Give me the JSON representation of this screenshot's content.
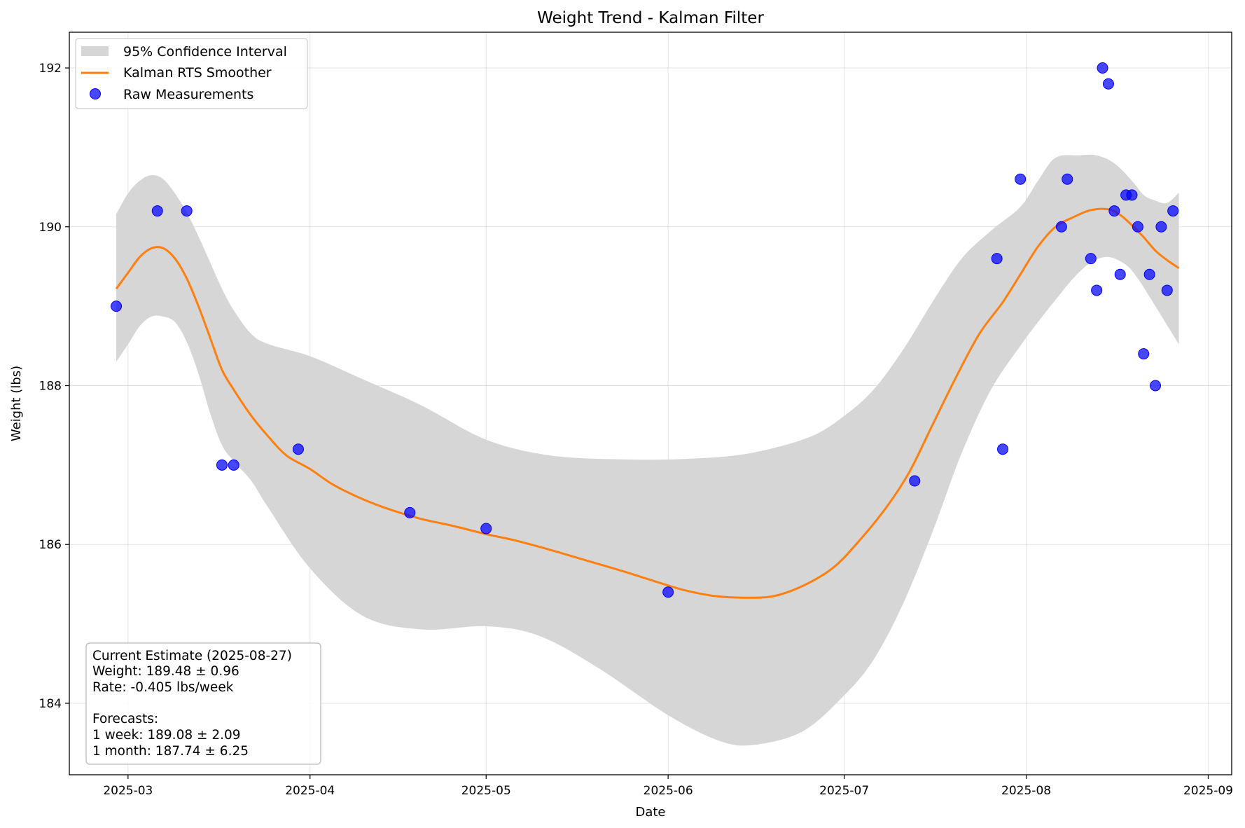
{
  "chart_data": {
    "type": "line",
    "title": "Weight Trend - Kalman Filter",
    "xlabel": "Date",
    "ylabel": "Weight (lbs)",
    "xlim": [
      "2025-02-19",
      "2025-09-05"
    ],
    "ylim": [
      183.1,
      192.45
    ],
    "grid": true,
    "legend_position": "top-left",
    "x_ticks": [
      "2025-03",
      "2025-04",
      "2025-05",
      "2025-06",
      "2025-07",
      "2025-08",
      "2025-09"
    ],
    "y_ticks": [
      184,
      186,
      188,
      190,
      192
    ],
    "legend": [
      {
        "label": "95% Confidence Interval",
        "kind": "band",
        "color": "#d6d6d6"
      },
      {
        "label": "Kalman RTS Smoother",
        "kind": "line",
        "color": "#ff7f0e"
      },
      {
        "label": "Raw Measurements",
        "kind": "scatter",
        "color": "#0000ff"
      }
    ],
    "series": [
      {
        "name": "Kalman RTS Smoother",
        "type": "line",
        "color": "#ff7f0e",
        "points": [
          [
            "2025-02-27",
            189.22
          ],
          [
            "2025-03-01",
            189.42
          ],
          [
            "2025-03-03",
            189.62
          ],
          [
            "2025-03-05",
            189.73
          ],
          [
            "2025-03-07",
            189.73
          ],
          [
            "2025-03-09",
            189.6
          ],
          [
            "2025-03-11",
            189.35
          ],
          [
            "2025-03-13",
            189.0
          ],
          [
            "2025-03-15",
            188.6
          ],
          [
            "2025-03-17",
            188.2
          ],
          [
            "2025-03-19",
            187.95
          ],
          [
            "2025-03-22",
            187.62
          ],
          [
            "2025-03-25",
            187.35
          ],
          [
            "2025-03-28",
            187.12
          ],
          [
            "2025-04-01",
            186.95
          ],
          [
            "2025-04-05",
            186.75
          ],
          [
            "2025-04-10",
            186.57
          ],
          [
            "2025-04-15",
            186.43
          ],
          [
            "2025-04-20",
            186.32
          ],
          [
            "2025-04-25",
            186.24
          ],
          [
            "2025-05-01",
            186.13
          ],
          [
            "2025-05-06",
            186.05
          ],
          [
            "2025-05-12",
            185.93
          ],
          [
            "2025-05-18",
            185.8
          ],
          [
            "2025-05-24",
            185.67
          ],
          [
            "2025-05-30",
            185.53
          ],
          [
            "2025-06-04",
            185.42
          ],
          [
            "2025-06-09",
            185.35
          ],
          [
            "2025-06-14",
            185.33
          ],
          [
            "2025-06-19",
            185.35
          ],
          [
            "2025-06-24",
            185.48
          ],
          [
            "2025-06-29",
            185.7
          ],
          [
            "2025-07-03",
            186.0
          ],
          [
            "2025-07-08",
            186.45
          ],
          [
            "2025-07-12",
            186.9
          ],
          [
            "2025-07-16",
            187.5
          ],
          [
            "2025-07-20",
            188.1
          ],
          [
            "2025-07-24",
            188.65
          ],
          [
            "2025-07-28",
            189.05
          ],
          [
            "2025-07-31",
            189.4
          ],
          [
            "2025-08-03",
            189.75
          ],
          [
            "2025-08-06",
            190.0
          ],
          [
            "2025-08-09",
            190.12
          ],
          [
            "2025-08-12",
            190.21
          ],
          [
            "2025-08-15",
            190.22
          ],
          [
            "2025-08-17",
            190.15
          ],
          [
            "2025-08-19",
            190.02
          ],
          [
            "2025-08-21",
            189.87
          ],
          [
            "2025-08-23",
            189.7
          ],
          [
            "2025-08-25",
            189.58
          ],
          [
            "2025-08-27",
            189.48
          ]
        ]
      },
      {
        "name": "95% Confidence Interval upper",
        "type": "band-upper",
        "points": [
          [
            "2025-02-27",
            190.16
          ],
          [
            "2025-03-01",
            190.42
          ],
          [
            "2025-03-03",
            190.58
          ],
          [
            "2025-03-05",
            190.65
          ],
          [
            "2025-03-07",
            190.6
          ],
          [
            "2025-03-09",
            190.42
          ],
          [
            "2025-03-11",
            190.18
          ],
          [
            "2025-03-13",
            189.88
          ],
          [
            "2025-03-15",
            189.55
          ],
          [
            "2025-03-17",
            189.22
          ],
          [
            "2025-03-19",
            188.95
          ],
          [
            "2025-03-22",
            188.65
          ],
          [
            "2025-03-25",
            188.52
          ],
          [
            "2025-04-01",
            188.37
          ],
          [
            "2025-04-10",
            188.08
          ],
          [
            "2025-04-20",
            187.75
          ],
          [
            "2025-05-01",
            187.32
          ],
          [
            "2025-05-12",
            187.12
          ],
          [
            "2025-05-25",
            187.07
          ],
          [
            "2025-06-05",
            187.08
          ],
          [
            "2025-06-15",
            187.15
          ],
          [
            "2025-06-25",
            187.35
          ],
          [
            "2025-07-01",
            187.62
          ],
          [
            "2025-07-06",
            187.95
          ],
          [
            "2025-07-11",
            188.45
          ],
          [
            "2025-07-16",
            189.05
          ],
          [
            "2025-07-21",
            189.6
          ],
          [
            "2025-07-26",
            189.95
          ],
          [
            "2025-07-31",
            190.25
          ],
          [
            "2025-08-03",
            190.58
          ],
          [
            "2025-08-06",
            190.87
          ],
          [
            "2025-08-10",
            190.9
          ],
          [
            "2025-08-13",
            190.9
          ],
          [
            "2025-08-16",
            190.8
          ],
          [
            "2025-08-19",
            190.58
          ],
          [
            "2025-08-21",
            190.4
          ],
          [
            "2025-08-23",
            190.33
          ],
          [
            "2025-08-25",
            190.3
          ],
          [
            "2025-08-27",
            190.43
          ]
        ]
      },
      {
        "name": "95% Confidence Interval lower",
        "type": "band-lower",
        "points": [
          [
            "2025-02-27",
            188.3
          ],
          [
            "2025-03-01",
            188.52
          ],
          [
            "2025-03-03",
            188.75
          ],
          [
            "2025-03-05",
            188.87
          ],
          [
            "2025-03-07",
            188.87
          ],
          [
            "2025-03-09",
            188.8
          ],
          [
            "2025-03-11",
            188.55
          ],
          [
            "2025-03-13",
            188.15
          ],
          [
            "2025-03-15",
            187.65
          ],
          [
            "2025-03-17",
            187.25
          ],
          [
            "2025-03-19",
            187.05
          ],
          [
            "2025-03-22",
            186.8
          ],
          [
            "2025-03-25",
            186.45
          ],
          [
            "2025-04-01",
            185.7
          ],
          [
            "2025-04-10",
            185.1
          ],
          [
            "2025-04-20",
            184.93
          ],
          [
            "2025-05-01",
            184.97
          ],
          [
            "2025-05-10",
            184.85
          ],
          [
            "2025-05-20",
            184.45
          ],
          [
            "2025-06-01",
            183.85
          ],
          [
            "2025-06-10",
            183.52
          ],
          [
            "2025-06-16",
            183.48
          ],
          [
            "2025-06-24",
            183.65
          ],
          [
            "2025-07-01",
            184.1
          ],
          [
            "2025-07-06",
            184.55
          ],
          [
            "2025-07-11",
            185.25
          ],
          [
            "2025-07-16",
            186.15
          ],
          [
            "2025-07-21",
            187.15
          ],
          [
            "2025-07-26",
            187.95
          ],
          [
            "2025-07-31",
            188.5
          ],
          [
            "2025-08-03",
            188.8
          ],
          [
            "2025-08-06",
            189.08
          ],
          [
            "2025-08-09",
            189.35
          ],
          [
            "2025-08-12",
            189.55
          ],
          [
            "2025-08-15",
            189.62
          ],
          [
            "2025-08-18",
            189.52
          ],
          [
            "2025-08-20",
            189.35
          ],
          [
            "2025-08-22",
            189.12
          ],
          [
            "2025-08-24",
            188.88
          ],
          [
            "2025-08-27",
            188.52
          ]
        ]
      },
      {
        "name": "Raw Measurements",
        "type": "scatter",
        "color": "#0000ff",
        "points": [
          [
            "2025-02-27",
            189.0
          ],
          [
            "2025-03-06",
            190.2
          ],
          [
            "2025-03-11",
            190.2
          ],
          [
            "2025-03-17",
            187.0
          ],
          [
            "2025-03-19",
            187.0
          ],
          [
            "2025-03-30",
            187.2
          ],
          [
            "2025-04-18",
            186.4
          ],
          [
            "2025-05-01",
            186.2
          ],
          [
            "2025-06-01",
            185.4
          ],
          [
            "2025-07-13",
            186.8
          ],
          [
            "2025-07-27",
            189.6
          ],
          [
            "2025-07-28",
            187.2
          ],
          [
            "2025-07-31",
            190.6
          ],
          [
            "2025-08-07",
            190.0
          ],
          [
            "2025-08-08",
            190.6
          ],
          [
            "2025-08-12",
            189.6
          ],
          [
            "2025-08-13",
            189.2
          ],
          [
            "2025-08-14",
            192.0
          ],
          [
            "2025-08-15",
            191.8
          ],
          [
            "2025-08-16",
            190.2
          ],
          [
            "2025-08-17",
            189.4
          ],
          [
            "2025-08-18",
            190.4
          ],
          [
            "2025-08-19",
            190.4
          ],
          [
            "2025-08-20",
            190.0
          ],
          [
            "2025-08-21",
            188.4
          ],
          [
            "2025-08-22",
            189.4
          ],
          [
            "2025-08-23",
            188.0
          ],
          [
            "2025-08-24",
            190.0
          ],
          [
            "2025-08-25",
            189.2
          ],
          [
            "2025-08-26",
            190.2
          ]
        ]
      }
    ],
    "annotation": {
      "lines": [
        "Current Estimate (2025-08-27)",
        "Weight: 189.48 ± 0.96",
        "Rate: -0.405 lbs/week",
        "",
        "Forecasts:",
        "1 week: 189.08 ± 2.09",
        "1 month: 187.74 ± 6.25"
      ]
    }
  }
}
